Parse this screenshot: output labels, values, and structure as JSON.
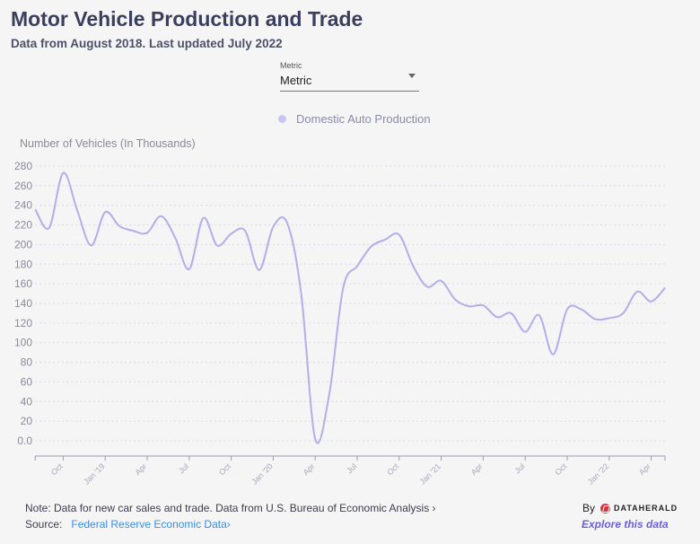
{
  "header": {
    "title": "Motor Vehicle Production and Trade",
    "subtitle": "Data from August 2018. Last updated July 2022"
  },
  "metric_dropdown": {
    "label": "Metric",
    "value": "Metric"
  },
  "footer": {
    "note": "Note: Data for new car sales and trade. Data from U.S. Bureau of Economic Analysis ›",
    "source_label": "Source:",
    "source_link": "Federal Reserve Economic Data›",
    "by_label": "By",
    "brand": "DATAHERALD",
    "explore": "Explore this data"
  },
  "colors": {
    "line": "#b3aee8",
    "legend_dot": "#c9c5f0",
    "link": "#3a8ee0",
    "explore": "#6a5fd6"
  },
  "chart_data": {
    "type": "line",
    "ylabel": "Number of Vehicles (In Thousands)",
    "ylim": [
      0,
      280
    ],
    "yticks": [
      "0.0",
      "20",
      "40",
      "60",
      "80",
      "100",
      "120",
      "140",
      "160",
      "180",
      "200",
      "220",
      "240",
      "260",
      "280"
    ],
    "grid": true,
    "legend_position": "top",
    "xticks": [
      {
        "month": "2018-10",
        "label": "Oct"
      },
      {
        "month": "2019-01",
        "label": "Jan '19"
      },
      {
        "month": "2019-04",
        "label": "Apr"
      },
      {
        "month": "2019-07",
        "label": "Jul"
      },
      {
        "month": "2019-10",
        "label": "Oct"
      },
      {
        "month": "2020-01",
        "label": "Jan '20"
      },
      {
        "month": "2020-04",
        "label": "Apr"
      },
      {
        "month": "2020-07",
        "label": "Jul"
      },
      {
        "month": "2020-10",
        "label": "Oct"
      },
      {
        "month": "2021-01",
        "label": "Jan '21"
      },
      {
        "month": "2021-04",
        "label": "Apr"
      },
      {
        "month": "2021-07",
        "label": "Jul"
      },
      {
        "month": "2021-10",
        "label": "Oct"
      },
      {
        "month": "2022-01",
        "label": "Jan '22"
      },
      {
        "month": "2022-04",
        "label": "Apr"
      }
    ],
    "x": [
      "2018-08",
      "2018-09",
      "2018-10",
      "2018-11",
      "2018-12",
      "2019-01",
      "2019-02",
      "2019-03",
      "2019-04",
      "2019-05",
      "2019-06",
      "2019-07",
      "2019-08",
      "2019-09",
      "2019-10",
      "2019-11",
      "2019-12",
      "2020-01",
      "2020-02",
      "2020-03",
      "2020-04",
      "2020-05",
      "2020-06",
      "2020-07",
      "2020-08",
      "2020-09",
      "2020-10",
      "2020-11",
      "2020-12",
      "2021-01",
      "2021-02",
      "2021-03",
      "2021-04",
      "2021-05",
      "2021-06",
      "2021-07",
      "2021-08",
      "2021-09",
      "2021-10",
      "2021-11",
      "2021-12",
      "2022-01",
      "2022-02",
      "2022-03",
      "2022-04",
      "2022-05"
    ],
    "series": [
      {
        "name": "Domestic Auto Production",
        "values": [
          236,
          217,
          273,
          235,
          199,
          233,
          219,
          214,
          212,
          229,
          207,
          175,
          227,
          199,
          211,
          214,
          174,
          218,
          222,
          150,
          2,
          47,
          156,
          178,
          198,
          205,
          210,
          178,
          157,
          163,
          144,
          137,
          138,
          126,
          130,
          111,
          128,
          88,
          134,
          134,
          124,
          125,
          130,
          152,
          142,
          156
        ]
      }
    ]
  }
}
